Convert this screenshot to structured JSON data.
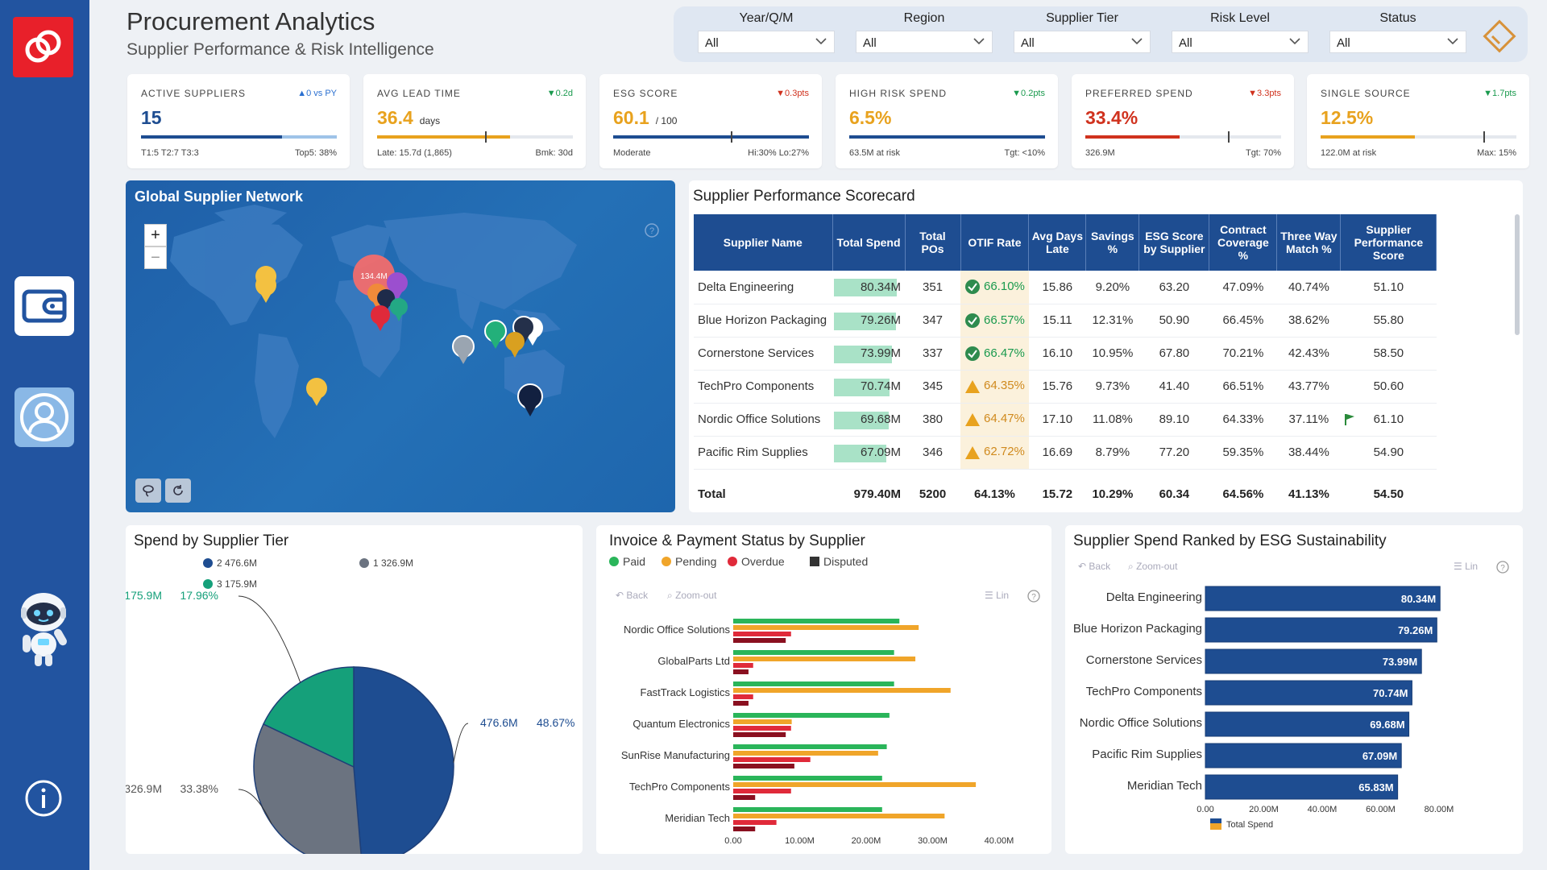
{
  "header": {
    "title": "Procurement Analytics",
    "subtitle": "Supplier Performance & Risk Intelligence"
  },
  "filters": [
    {
      "label": "Year/Q/M",
      "value": "All"
    },
    {
      "label": "Region",
      "value": "All"
    },
    {
      "label": "Supplier Tier",
      "value": "All"
    },
    {
      "label": "Risk Level",
      "value": "All"
    },
    {
      "label": "Status",
      "value": "All"
    }
  ],
  "kpis": [
    {
      "label": "ACTIVE SUPPLIERS",
      "delta": "▲0 vs PY",
      "delta_color": "#2a6fd0",
      "value": "15",
      "unit": "",
      "value_color": "#1e4d91",
      "foot_left": "T1:5 T2:7 T3:3",
      "foot_right": "Top5: 38%",
      "bar_color": "#1e4d91",
      "bar_fill": 0.72,
      "bar_fill2": 1.0,
      "bar_color2": "#9ec3e8"
    },
    {
      "label": "AVG LEAD TIME",
      "delta": "▼0.2d",
      "delta_color": "#1a9a4e",
      "value": "36.4",
      "unit": "days",
      "value_color": "#e8a21e",
      "foot_left": "Late: 15.7d (1,865)",
      "foot_right": "Bmk: 30d",
      "bar_color": "#e8a21e",
      "bar_fill": 0.68,
      "marker": 0.55
    },
    {
      "label": "ESG SCORE",
      "delta": "▼0.3pts",
      "delta_color": "#d0321e",
      "value": "60.1",
      "unit": "/ 100",
      "value_color": "#e8a21e",
      "foot_left": "Moderate",
      "foot_right": "Hi:30% Lo:27%",
      "bar_color": "#1e4d91",
      "bar_fill": 1.0,
      "marker": 0.6
    },
    {
      "label": "HIGH RISK SPEND",
      "delta": "▼0.2pts",
      "delta_color": "#1a9a4e",
      "value": "6.5%",
      "unit": "",
      "value_color": "#e8a21e",
      "foot_left": "63.5M at risk",
      "foot_right": "Tgt: <10%",
      "bar_color": "#1e4d91",
      "bar_fill": 1.0
    },
    {
      "label": "PREFERRED SPEND",
      "delta": "▼3.3pts",
      "delta_color": "#d0321e",
      "value": "33.4%",
      "unit": "",
      "value_color": "#d0321e",
      "foot_left": "326.9M",
      "foot_right": "Tgt: 70%",
      "bar_color": "#d0321e",
      "bar_fill": 0.48,
      "marker": 0.73
    },
    {
      "label": "SINGLE SOURCE",
      "delta": "▼1.7pts",
      "delta_color": "#1a9a4e",
      "value": "12.5%",
      "unit": "",
      "value_color": "#e8a21e",
      "foot_left": "122.0M at risk",
      "foot_right": "Max: 15%",
      "bar_color": "#e8a21e",
      "bar_fill": 0.48,
      "marker": 0.83
    }
  ],
  "map": {
    "title": "Global Supplier Network",
    "zoom_in": "+",
    "zoom_out": "−",
    "bubble_label": "134.4M"
  },
  "scorecard": {
    "title": "Supplier Performance Scorecard",
    "columns": [
      "Supplier Name",
      "Total Spend",
      "Total POs",
      "OTIF Rate",
      "Avg Days Late",
      "Savings %",
      "ESG Score by Supplier",
      "Contract Coverage %",
      "Three Way Match %",
      "Supplier Performance Score"
    ],
    "rows": [
      {
        "name": "Delta Engineering",
        "spend": "80.34M",
        "spend_val": 80.34,
        "pos": "351",
        "otif": "66.10%",
        "otif_icon": "check",
        "late": "15.86",
        "savings": "9.20%",
        "esg": "63.20",
        "contract": "47.09%",
        "match": "40.74%",
        "score": "51.10",
        "flag": false
      },
      {
        "name": "Blue Horizon Packaging",
        "spend": "79.26M",
        "spend_val": 79.26,
        "pos": "347",
        "otif": "66.57%",
        "otif_icon": "check",
        "late": "15.11",
        "savings": "12.31%",
        "esg": "50.90",
        "contract": "66.45%",
        "match": "38.62%",
        "score": "55.80",
        "flag": false
      },
      {
        "name": "Cornerstone Services",
        "spend": "73.99M",
        "spend_val": 73.99,
        "pos": "337",
        "otif": "66.47%",
        "otif_icon": "check",
        "late": "16.10",
        "savings": "10.95%",
        "esg": "67.80",
        "contract": "70.21%",
        "match": "42.43%",
        "score": "58.50",
        "flag": false
      },
      {
        "name": "TechPro Components",
        "spend": "70.74M",
        "spend_val": 70.74,
        "pos": "345",
        "otif": "64.35%",
        "otif_icon": "warn",
        "late": "15.76",
        "savings": "9.73%",
        "esg": "41.40",
        "contract": "66.51%",
        "match": "43.77%",
        "score": "50.60",
        "flag": false
      },
      {
        "name": "Nordic Office Solutions",
        "spend": "69.68M",
        "spend_val": 69.68,
        "pos": "380",
        "otif": "64.47%",
        "otif_icon": "warn",
        "late": "17.10",
        "savings": "11.08%",
        "esg": "89.10",
        "contract": "64.33%",
        "match": "37.11%",
        "score": "61.10",
        "flag": true
      },
      {
        "name": "Pacific Rim Supplies",
        "spend": "67.09M",
        "spend_val": 67.09,
        "pos": "346",
        "otif": "62.72%",
        "otif_icon": "warn",
        "late": "16.69",
        "savings": "8.79%",
        "esg": "77.20",
        "contract": "59.35%",
        "match": "38.44%",
        "score": "54.90",
        "flag": false
      }
    ],
    "total": {
      "name": "Total",
      "spend": "979.40M",
      "pos": "5200",
      "otif": "64.13%",
      "late": "15.72",
      "savings": "10.29%",
      "esg": "60.34",
      "contract": "64.56%",
      "match": "41.13%",
      "score": "54.50"
    }
  },
  "tier_pie": {
    "title": "Spend by Supplier Tier",
    "legend": [
      {
        "label": "2 476.6M",
        "color": "#1e4d91"
      },
      {
        "label": "1 326.9M",
        "color": "#6b7380"
      },
      {
        "label": "3 175.9M",
        "color": "#15a07a"
      }
    ],
    "labels": [
      {
        "value": "476.6M",
        "pct": "48.67%"
      },
      {
        "value": "326.9M",
        "pct": "33.38%"
      },
      {
        "value": "175.9M",
        "pct": "17.96%"
      }
    ]
  },
  "invoice_chart": {
    "title": "Invoice & Payment Status by Supplier",
    "legend": [
      {
        "label": "Paid",
        "color": "#2ab55a"
      },
      {
        "label": "Pending",
        "color": "#f0a52a"
      },
      {
        "label": "Overdue",
        "color": "#e02a3a"
      },
      {
        "label": "Disputed",
        "color": "#333333"
      }
    ],
    "toolbar": {
      "back": "Back",
      "zoom": "Zoom-out",
      "lin": "Lin"
    }
  },
  "esg_chart": {
    "title": "Supplier Spend Ranked by ESG Sustainability",
    "toolbar": {
      "back": "Back",
      "zoom": "Zoom-out",
      "lin": "Lin"
    },
    "legend_label": "Total Spend"
  },
  "chart_data": [
    {
      "type": "pie",
      "title": "Spend by Supplier Tier",
      "categories": [
        "2",
        "1",
        "3"
      ],
      "values": [
        476.6,
        326.9,
        175.9
      ],
      "percentages": [
        48.67,
        33.38,
        17.96
      ],
      "colors": [
        "#1e4d91",
        "#6b7380",
        "#15a07a"
      ]
    },
    {
      "type": "bar",
      "orientation": "horizontal",
      "title": "Invoice & Payment Status by Supplier",
      "categories": [
        "Nordic Office Solutions",
        "GlobalParts Ltd",
        "FastTrack Logistics",
        "Quantum Electronics",
        "SunRise Manufacturing",
        "TechPro Components",
        "Meridian Tech"
      ],
      "series": [
        {
          "name": "Paid",
          "color": "#2ab55a",
          "values": [
            25.0,
            24.2,
            24.2,
            23.5,
            23.1,
            22.4,
            22.4
          ]
        },
        {
          "name": "Pending",
          "color": "#f0a52a",
          "values": [
            27.9,
            27.4,
            32.7,
            8.8,
            21.8,
            36.5,
            31.8
          ]
        },
        {
          "name": "Overdue",
          "color": "#e02a3a",
          "values": [
            8.7,
            3.0,
            3.0,
            8.7,
            11.6,
            8.7,
            6.5
          ]
        },
        {
          "name": "Disputed",
          "color": "#8a1020",
          "values": [
            7.9,
            2.3,
            2.3,
            7.9,
            9.2,
            3.3,
            3.3
          ]
        }
      ],
      "xticks": [
        "0.00",
        "10.00M",
        "20.00M",
        "30.00M",
        "40.00M"
      ],
      "xlim": [
        0,
        40
      ]
    },
    {
      "type": "bar",
      "orientation": "horizontal",
      "title": "Supplier Spend Ranked by ESG Sustainability",
      "categories": [
        "Delta Engineering",
        "Blue Horizon Packaging",
        "Cornerstone Services",
        "TechPro Components",
        "Nordic Office Solutions",
        "Pacific Rim Supplies",
        "Meridian Tech"
      ],
      "series": [
        {
          "name": "Total Spend",
          "values": [
            80.34,
            79.26,
            73.99,
            70.74,
            69.68,
            67.09,
            65.83
          ]
        }
      ],
      "value_labels": [
        "80.34M",
        "79.26M",
        "73.99M",
        "70.74M",
        "69.68M",
        "67.09M",
        "65.83M"
      ],
      "xticks": [
        "0.00",
        "20.00M",
        "40.00M",
        "60.00M",
        "80.00M"
      ],
      "xlim": [
        0,
        80
      ]
    }
  ]
}
